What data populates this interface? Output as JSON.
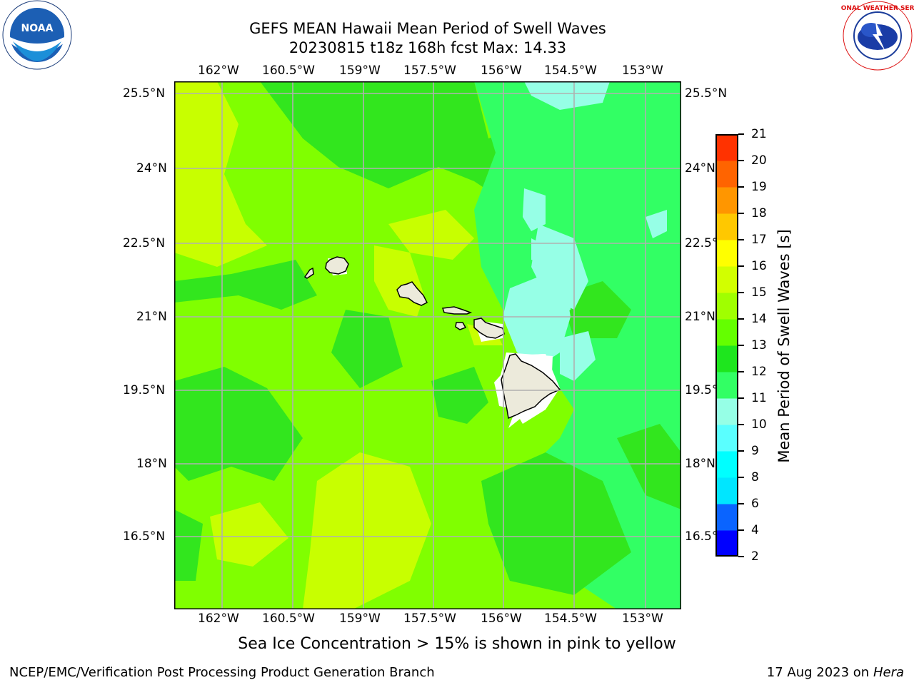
{
  "title_line1": "GEFS MEAN Hawaii Mean Period of Swell Waves",
  "title_line2": "20230815 t18z 168h fcst   Max: 14.33",
  "caption": "Sea Ice Concentration > 15% is shown in pink to yellow",
  "footer_left": "NCEP/EMC/Verification Post Processing Product Generation Branch",
  "footer_right_date": "17 Aug 2023 on",
  "footer_right_machine": "Hera",
  "colorbar_title": "Mean Period of Swell Waves [s]",
  "colorbar_levels": [
    "2",
    "4",
    "6",
    "8",
    "9",
    "10",
    "11",
    "12",
    "13",
    "14",
    "15",
    "16",
    "17",
    "18",
    "19",
    "20",
    "21"
  ],
  "colorbar_colors": [
    "#0000ff",
    "#0a64ff",
    "#00e6ff",
    "#00ffff",
    "#5affff",
    "#96ffe6",
    "#32ff64",
    "#1ee61e",
    "#64ff00",
    "#a0ff00",
    "#d2ff00",
    "#ffff00",
    "#ffc800",
    "#ff9600",
    "#ff6400",
    "#ff3200",
    "#ff0000"
  ],
  "lon_labels": [
    "162°W",
    "160.5°W",
    "159°W",
    "157.5°W",
    "156°W",
    "154.5°W",
    "153°W"
  ],
  "lat_labels": [
    "25.5°N",
    "24°N",
    "22.5°N",
    "21°N",
    "19.5°N",
    "18°N",
    "16.5°N"
  ],
  "logos": {
    "noaa": "NOAA",
    "nws_ring": "NATIONAL WEATHER SERVICE"
  },
  "map": {
    "lon_range": [
      -163,
      -152.2
    ],
    "lat_range": [
      15,
      25.7
    ],
    "colors": {
      "land": "#eceadb",
      "grid": "#b0b0b0",
      "white": "#ffffff"
    }
  }
}
